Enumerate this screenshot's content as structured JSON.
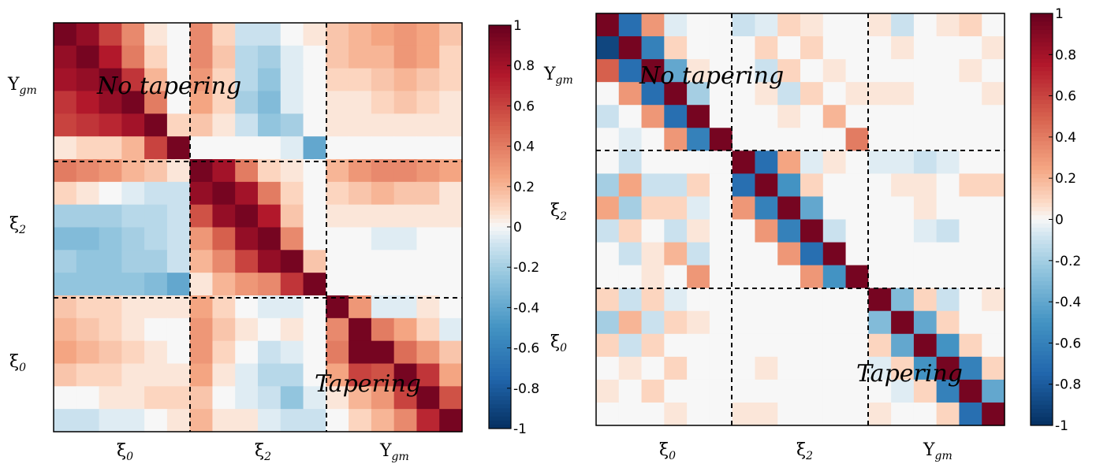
{
  "chart_data": [
    {
      "type": "heatmap",
      "panel": "left",
      "block_labels": [
        "ξ0",
        "ξ2",
        "Υgm"
      ],
      "annotations": [
        "No tapering",
        "Tapering"
      ],
      "colorbar": {
        "ticks": [
          "1",
          "0.8",
          "0.6",
          "0.4",
          "0.2",
          "0",
          "-0.2",
          "-0.4",
          "-0.6",
          "-0.8",
          "-1"
        ],
        "range": [
          -1,
          1
        ],
        "colormap": "RdBu_r"
      },
      "values": [
        [
          0.95,
          0.85,
          0.6,
          0.35,
          0.05,
          0.0,
          0.35,
          0.1,
          -0.1,
          -0.1,
          0.0,
          0.05,
          0.15,
          0.2,
          0.25,
          0.3,
          0.25,
          0.15
        ],
        [
          0.85,
          0.95,
          0.75,
          0.4,
          0.1,
          0.0,
          0.35,
          0.15,
          -0.15,
          -0.2,
          -0.05,
          0.0,
          0.15,
          0.2,
          0.2,
          0.3,
          0.25,
          0.1
        ],
        [
          0.8,
          0.85,
          0.95,
          0.65,
          0.2,
          0.0,
          0.3,
          0.1,
          -0.15,
          -0.25,
          -0.05,
          0.0,
          0.1,
          0.1,
          0.15,
          0.2,
          0.15,
          0.1
        ],
        [
          0.65,
          0.75,
          0.85,
          0.95,
          0.4,
          0.0,
          0.25,
          0.1,
          -0.2,
          -0.3,
          -0.05,
          0.0,
          0.05,
          0.05,
          0.1,
          0.15,
          0.1,
          0.05
        ],
        [
          0.6,
          0.65,
          0.7,
          0.8,
          0.95,
          0.1,
          0.15,
          0.05,
          -0.1,
          -0.25,
          -0.2,
          0.0,
          0.05,
          0.05,
          0.05,
          0.05,
          0.05,
          0.05
        ],
        [
          0.05,
          0.1,
          0.1,
          0.2,
          0.6,
          0.95,
          0.0,
          0.0,
          0.0,
          0.0,
          -0.05,
          -0.4,
          0.0,
          0.0,
          0.0,
          0.0,
          0.0,
          0.0
        ],
        [
          0.4,
          0.35,
          0.3,
          0.2,
          0.15,
          0.05,
          0.95,
          0.8,
          0.4,
          0.1,
          0.05,
          0.0,
          0.2,
          0.3,
          0.35,
          0.35,
          0.3,
          0.25
        ],
        [
          0.1,
          0.05,
          0.0,
          -0.05,
          -0.1,
          -0.1,
          0.85,
          0.95,
          0.8,
          0.4,
          0.1,
          0.0,
          0.1,
          0.15,
          0.2,
          0.15,
          0.15,
          0.05
        ],
        [
          -0.2,
          -0.2,
          -0.2,
          -0.15,
          -0.15,
          -0.1,
          0.55,
          0.85,
          0.95,
          0.75,
          0.15,
          0.0,
          0.05,
          0.05,
          0.05,
          0.05,
          0.05,
          0.05
        ],
        [
          -0.3,
          -0.3,
          -0.25,
          -0.2,
          -0.15,
          -0.1,
          0.3,
          0.5,
          0.85,
          0.95,
          0.35,
          0.0,
          0.0,
          0.0,
          -0.05,
          -0.05,
          0.0,
          0.0
        ],
        [
          -0.2,
          -0.25,
          -0.25,
          -0.2,
          -0.2,
          -0.1,
          0.2,
          0.35,
          0.6,
          0.85,
          0.95,
          0.15,
          0.0,
          0.0,
          0.0,
          0.0,
          0.0,
          0.0
        ],
        [
          -0.25,
          -0.25,
          -0.25,
          -0.25,
          -0.3,
          -0.4,
          0.05,
          0.2,
          0.3,
          0.35,
          0.65,
          0.95,
          0.0,
          0.0,
          0.0,
          0.0,
          0.0,
          0.0
        ],
        [
          0.15,
          0.1,
          0.1,
          0.05,
          0.05,
          0.05,
          0.25,
          0.1,
          0.0,
          -0.05,
          -0.05,
          0.0,
          0.95,
          0.3,
          -0.05,
          -0.05,
          0.05,
          0.0
        ],
        [
          0.2,
          0.15,
          0.1,
          0.05,
          0.0,
          0.0,
          0.3,
          0.15,
          0.05,
          0.0,
          0.05,
          0.0,
          0.35,
          0.95,
          0.4,
          0.25,
          0.1,
          -0.05
        ],
        [
          0.25,
          0.2,
          0.15,
          0.1,
          0.05,
          0.0,
          0.3,
          0.1,
          0.0,
          -0.1,
          -0.05,
          0.0,
          0.4,
          0.95,
          0.95,
          0.45,
          0.3,
          0.15
        ],
        [
          0.15,
          0.1,
          0.1,
          0.05,
          0.05,
          0.05,
          0.25,
          0.05,
          -0.05,
          -0.15,
          -0.15,
          0.0,
          0.25,
          0.6,
          0.55,
          0.95,
          0.65,
          0.25
        ],
        [
          0.0,
          0.0,
          0.05,
          0.05,
          0.1,
          0.1,
          0.15,
          0.0,
          -0.05,
          -0.1,
          -0.25,
          -0.05,
          0.05,
          0.2,
          0.3,
          0.6,
          0.95,
          0.55
        ],
        [
          -0.1,
          -0.1,
          -0.05,
          -0.05,
          0.0,
          0.05,
          0.2,
          0.05,
          0.05,
          -0.05,
          -0.1,
          -0.1,
          0.0,
          0.1,
          0.2,
          0.35,
          0.7,
          0.95
        ]
      ]
    },
    {
      "type": "heatmap",
      "panel": "right",
      "block_labels": [
        "ξ0",
        "ξ2",
        "Υgm"
      ],
      "annotations": [
        "No tapering",
        "Tapering"
      ],
      "colorbar": {
        "ticks": [
          "1",
          "0.8",
          "0.6",
          "0.4",
          "0.2",
          "0",
          "-0.2",
          "-0.4",
          "-0.6",
          "-0.8",
          "-1"
        ],
        "range": [
          -1,
          1
        ],
        "colormap": "RdBu_r"
      },
      "values": [
        [
          0.95,
          -0.7,
          0.3,
          -0.05,
          0.0,
          0.0,
          -0.1,
          -0.05,
          0.1,
          0.05,
          0.0,
          0.0,
          0.05,
          -0.1,
          0.0,
          0.05,
          0.1,
          0.0
        ],
        [
          -0.9,
          0.95,
          -0.6,
          0.1,
          0.0,
          0.0,
          0.0,
          0.1,
          0.0,
          0.1,
          0.0,
          0.0,
          0.0,
          0.05,
          0.0,
          0.0,
          0.0,
          0.05
        ],
        [
          0.5,
          -0.7,
          0.95,
          -0.4,
          0.05,
          0.0,
          0.0,
          -0.1,
          0.1,
          0.0,
          0.05,
          0.0,
          0.0,
          0.0,
          0.0,
          0.0,
          0.05,
          0.0
        ],
        [
          0.0,
          0.3,
          -0.7,
          0.95,
          -0.2,
          0.0,
          0.0,
          0.05,
          -0.1,
          0.1,
          0.0,
          0.05,
          0.05,
          0.05,
          0.0,
          0.0,
          0.0,
          0.05
        ],
        [
          -0.1,
          0.0,
          0.3,
          -0.7,
          0.95,
          0.0,
          0.0,
          0.0,
          0.05,
          0.0,
          0.2,
          0.0,
          0.0,
          0.0,
          0.0,
          0.0,
          0.0,
          0.0
        ],
        [
          0.0,
          -0.05,
          0.0,
          0.3,
          -0.6,
          0.95,
          0.0,
          0.0,
          0.0,
          0.0,
          0.0,
          0.4,
          0.0,
          0.0,
          0.0,
          0.0,
          0.0,
          0.0
        ],
        [
          0.0,
          -0.1,
          0.0,
          0.0,
          0.0,
          0.0,
          0.95,
          -0.7,
          0.25,
          -0.05,
          0.05,
          0.0,
          -0.05,
          -0.05,
          -0.1,
          -0.05,
          0.0,
          0.0
        ],
        [
          -0.2,
          0.25,
          -0.1,
          -0.1,
          0.1,
          0.0,
          -0.7,
          0.95,
          -0.5,
          0.1,
          0.0,
          0.0,
          0.0,
          0.05,
          0.05,
          0.0,
          0.1,
          0.1
        ],
        [
          0.25,
          -0.2,
          0.1,
          0.1,
          -0.05,
          0.0,
          0.3,
          -0.6,
          0.95,
          -0.4,
          0.0,
          0.0,
          0.0,
          0.0,
          0.05,
          0.0,
          0.0,
          0.0
        ],
        [
          -0.1,
          0.1,
          0.0,
          -0.1,
          0.05,
          0.0,
          0.0,
          0.3,
          -0.6,
          0.95,
          -0.1,
          0.0,
          0.0,
          0.0,
          -0.05,
          -0.1,
          0.0,
          0.0
        ],
        [
          0.0,
          -0.1,
          0.05,
          0.2,
          -0.1,
          0.0,
          0.0,
          0.0,
          0.3,
          -0.7,
          0.95,
          0.0,
          0.0,
          0.0,
          0.0,
          0.0,
          0.0,
          0.0
        ],
        [
          0.0,
          0.0,
          0.05,
          0.0,
          0.3,
          0.0,
          0.0,
          0.0,
          0.0,
          0.3,
          -0.5,
          0.95,
          0.0,
          0.0,
          0.0,
          0.0,
          0.0,
          0.0
        ],
        [
          0.1,
          -0.1,
          0.1,
          -0.05,
          0.0,
          0.0,
          0.0,
          0.0,
          0.0,
          0.0,
          0.0,
          0.0,
          0.95,
          -0.3,
          0.1,
          -0.1,
          0.0,
          0.05
        ],
        [
          -0.2,
          0.2,
          -0.1,
          0.1,
          0.05,
          0.0,
          0.0,
          0.0,
          0.0,
          0.0,
          0.0,
          0.0,
          -0.3,
          0.95,
          -0.4,
          0.1,
          0.0,
          0.0
        ],
        [
          0.1,
          -0.1,
          0.1,
          0.0,
          0.0,
          0.0,
          0.0,
          0.0,
          0.0,
          0.0,
          0.0,
          0.0,
          0.1,
          -0.4,
          0.95,
          -0.5,
          0.1,
          0.0
        ],
        [
          0.0,
          0.05,
          0.0,
          0.1,
          0.0,
          0.0,
          0.0,
          0.05,
          0.0,
          0.0,
          0.0,
          0.0,
          -0.05,
          0.1,
          -0.5,
          0.95,
          -0.6,
          0.1
        ],
        [
          0.05,
          0.0,
          0.1,
          0.0,
          0.0,
          0.0,
          0.0,
          0.0,
          0.0,
          0.0,
          0.0,
          0.0,
          0.0,
          -0.05,
          0.1,
          -0.6,
          0.95,
          -0.4
        ],
        [
          0.0,
          0.0,
          0.0,
          0.05,
          0.0,
          0.0,
          0.05,
          0.05,
          0.0,
          0.0,
          0.0,
          0.0,
          0.05,
          0.0,
          0.0,
          0.1,
          -0.7,
          0.95
        ]
      ]
    }
  ]
}
